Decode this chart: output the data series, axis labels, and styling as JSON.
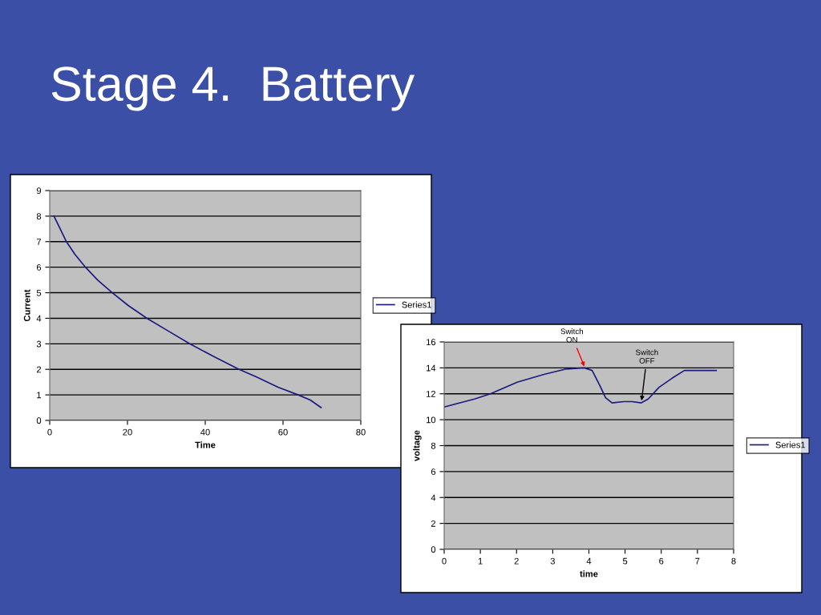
{
  "chart_data": [
    {
      "type": "line",
      "title": "Stage 4.  Battery",
      "xlabel": "Time",
      "ylabel": "Current",
      "xlim": [
        0,
        80
      ],
      "xticks": [
        0,
        20,
        40,
        60,
        80
      ],
      "ylim": [
        0,
        9
      ],
      "yticks": [
        0,
        1,
        2,
        3,
        4,
        5,
        6,
        7,
        8,
        9
      ],
      "grid": "y",
      "legend": "right",
      "marker": "none",
      "line_style": "solid",
      "series": [
        {
          "name": "Series1",
          "color": "#1a1a80",
          "x": [
            1.1,
            4.3,
            6.5,
            9.2,
            12.3,
            16.1,
            20.2,
            25,
            30.5,
            36,
            42.2,
            48.7,
            53.2,
            58.7,
            63.9,
            67,
            69.8
          ],
          "values": [
            8,
            7,
            6.5,
            6,
            5.5,
            5,
            4.5,
            4,
            3.5,
            3,
            2.5,
            2,
            1.7,
            1.3,
            1,
            0.8,
            0.5
          ]
        }
      ]
    },
    {
      "type": "line",
      "xlabel": "time",
      "ylabel": "voltage",
      "xlim": [
        0,
        8
      ],
      "xticks": [
        0,
        1,
        2,
        3,
        4,
        5,
        6,
        7,
        8
      ],
      "ylim": [
        0,
        16
      ],
      "yticks": [
        0,
        2,
        4,
        6,
        8,
        10,
        12,
        14,
        16
      ],
      "grid": "y",
      "legend": "right",
      "marker": "none",
      "line_style": "solid",
      "annotations": [
        {
          "text": "Switch\nON",
          "x": 3.9,
          "y": 13.95
        },
        {
          "text": "Switch\nOFF",
          "x": 5.45,
          "y": 11.3
        }
      ],
      "series": [
        {
          "name": "Series1",
          "color": "#1a1a80",
          "x": [
            0.02,
            0.84,
            1.28,
            2.02,
            2.76,
            3.35,
            3.87,
            4.09,
            4.31,
            4.46,
            4.64,
            4.97,
            5.19,
            5.45,
            5.64,
            5.94,
            6.3,
            6.64,
            7.52
          ],
          "values": [
            11.0,
            11.6,
            12.0,
            12.9,
            13.5,
            13.9,
            14.0,
            13.8,
            12.6,
            11.7,
            11.3,
            11.4,
            11.4,
            11.3,
            11.6,
            12.5,
            13.2,
            13.8,
            13.8
          ]
        }
      ]
    }
  ]
}
